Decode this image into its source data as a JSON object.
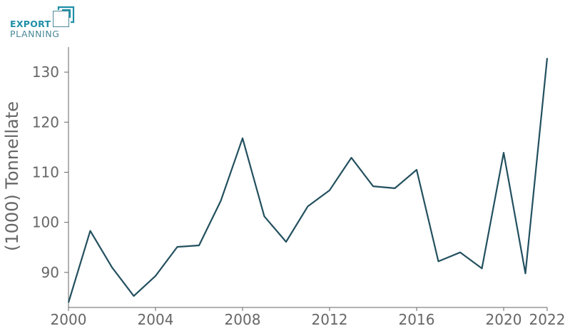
{
  "logo": {
    "line1": "EXPORT",
    "line2": "PLANNING"
  },
  "chart_data": {
    "type": "line",
    "ylabel": "(1000) Tonnellate",
    "xlabel": "",
    "title": "",
    "xlim": [
      2000,
      2022
    ],
    "ylim": [
      83,
      135
    ],
    "x_ticks": [
      2000,
      2004,
      2008,
      2012,
      2016,
      2020,
      2022
    ],
    "y_ticks": [
      90,
      100,
      110,
      120,
      130
    ],
    "grid": false,
    "line_color": "#23505f",
    "series": [
      {
        "x": [
          2000,
          2001,
          2002,
          2003,
          2004,
          2005,
          2006,
          2007,
          2008,
          2009,
          2010,
          2011,
          2012,
          2013,
          2014,
          2015,
          2016,
          2017,
          2018,
          2019,
          2020,
          2021,
          2022
        ],
        "values": [
          84.0,
          98.3,
          91.0,
          85.3,
          89.3,
          95.1,
          95.4,
          104.3,
          116.8,
          101.2,
          96.1,
          103.2,
          106.4,
          112.9,
          107.2,
          106.8,
          110.5,
          92.2,
          94.0,
          90.8,
          113.9,
          89.8,
          132.8
        ]
      }
    ]
  }
}
